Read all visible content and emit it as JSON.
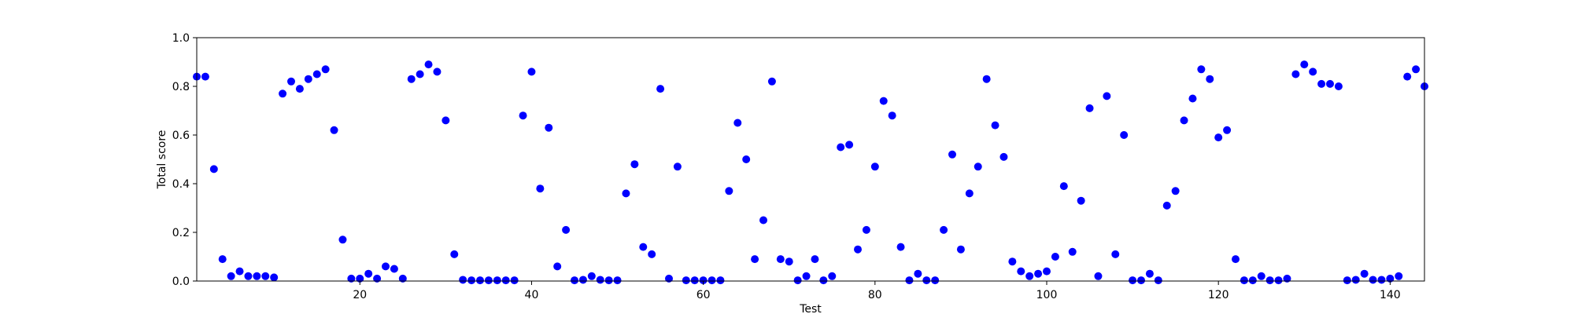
{
  "chart_data": {
    "type": "scatter",
    "title": "",
    "xlabel": "Test",
    "ylabel": "Total score",
    "xlim": [
      1,
      144
    ],
    "ylim": [
      0,
      1
    ],
    "x_ticks": [
      20,
      40,
      60,
      80,
      100,
      120,
      140
    ],
    "y_ticks": [
      "0.0",
      "0.2",
      "0.4",
      "0.6",
      "0.8",
      "1.0"
    ],
    "grid": false,
    "legend": "none",
    "marker_color": "#0000ff",
    "series": [
      {
        "x": [
          1,
          2,
          3,
          4,
          5,
          6,
          7,
          8,
          9,
          10,
          11,
          12,
          13,
          14,
          15,
          16,
          17,
          18,
          19,
          20,
          21,
          22,
          23,
          24,
          25,
          26,
          27,
          28,
          29,
          30,
          31,
          32,
          33,
          34,
          35,
          36,
          37,
          38,
          39,
          40,
          41,
          42,
          43,
          44,
          45,
          46,
          47,
          48,
          49,
          50,
          51,
          52,
          53,
          54,
          55,
          56,
          57,
          58,
          59,
          60,
          61,
          62,
          63,
          64,
          65,
          66,
          67,
          68,
          69,
          70,
          71,
          72,
          73,
          74,
          75,
          76,
          77,
          78,
          79,
          80,
          81,
          82,
          83,
          84,
          85,
          86,
          87,
          88,
          89,
          90,
          91,
          92,
          93,
          94,
          95,
          96,
          97,
          98,
          99,
          100,
          101,
          102,
          103,
          104,
          105,
          106,
          107,
          108,
          109,
          110,
          111,
          112,
          113,
          114,
          115,
          116,
          117,
          118,
          119,
          120,
          121,
          122,
          123,
          124,
          125,
          126,
          127,
          128,
          129,
          130,
          131,
          132,
          133,
          134,
          135,
          136,
          137,
          138,
          139,
          140,
          141,
          142,
          143,
          144
        ],
        "y": [
          0.84,
          0.84,
          0.46,
          0.09,
          0.02,
          0.04,
          0.02,
          0.02,
          0.02,
          0.015,
          0.77,
          0.82,
          0.79,
          0.83,
          0.85,
          0.87,
          0.62,
          0.17,
          0.01,
          0.01,
          0.03,
          0.01,
          0.06,
          0.05,
          0.01,
          0.83,
          0.85,
          0.89,
          0.86,
          0.66,
          0.11,
          0.005,
          0.003,
          0.003,
          0.003,
          0.003,
          0.003,
          0.003,
          0.68,
          0.86,
          0.38,
          0.63,
          0.06,
          0.21,
          0.003,
          0.005,
          0.02,
          0.005,
          0.003,
          0.003,
          0.36,
          0.48,
          0.14,
          0.11,
          0.79,
          0.01,
          0.47,
          0.003,
          0.003,
          0.003,
          0.003,
          0.003,
          0.37,
          0.65,
          0.5,
          0.09,
          0.25,
          0.82,
          0.09,
          0.08,
          0.003,
          0.02,
          0.09,
          0.003,
          0.02,
          0.55,
          0.56,
          0.13,
          0.21,
          0.47,
          0.74,
          0.68,
          0.14,
          0.003,
          0.03,
          0.003,
          0.003,
          0.21,
          0.52,
          0.13,
          0.36,
          0.47,
          0.83,
          0.64,
          0.51,
          0.08,
          0.04,
          0.02,
          0.03,
          0.04,
          0.1,
          0.39,
          0.12,
          0.33,
          0.71,
          0.02,
          0.76,
          0.11,
          0.6,
          0.003,
          0.003,
          0.03,
          0.003,
          0.31,
          0.37,
          0.66,
          0.75,
          0.87,
          0.83,
          0.59,
          0.62,
          0.09,
          0.003,
          0.003,
          0.02,
          0.003,
          0.003,
          0.01,
          0.85,
          0.89,
          0.86,
          0.81,
          0.81,
          0.8,
          0.003,
          0.005,
          0.03,
          0.005,
          0.005,
          0.01,
          0.02,
          0.84,
          0.87,
          0.8
        ]
      }
    ]
  }
}
